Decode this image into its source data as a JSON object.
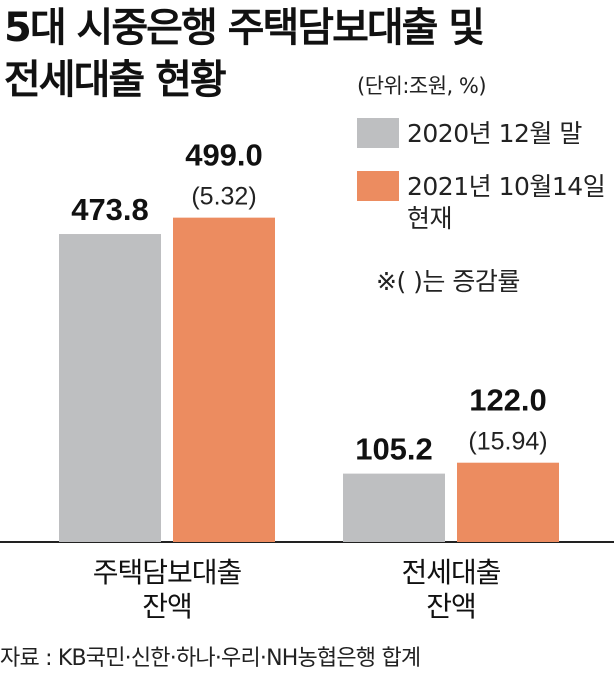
{
  "title_lines": [
    "5대 시중은행 주택담보대출 및",
    "전세대출 현황"
  ],
  "unit": "(단위:조원, %)",
  "legend": [
    {
      "label": "2020년 12월 말",
      "color": "#bebfc1"
    },
    {
      "label": "2021년 10월14일\n현재",
      "color": "#ec8c60"
    }
  ],
  "note": "※(    )는 증감률",
  "source": "자료 : KB국민·신한·하나·우리·NH농협은행 합계",
  "chart_data": {
    "type": "bar",
    "categories": [
      [
        "주택담보대출",
        "잔액"
      ],
      [
        "전세대출",
        "잔액"
      ]
    ],
    "series": [
      {
        "name": "2020년 12월 말",
        "values": [
          473.8,
          105.2
        ],
        "labels": [
          "473.8",
          "105.2"
        ],
        "color": "#bebfc1"
      },
      {
        "name": "2021년 10월14일 현재",
        "values": [
          499.0,
          122.0
        ],
        "labels": [
          "499.0",
          "122.0"
        ],
        "change_labels": [
          "(5.32)",
          "(15.94)"
        ],
        "color": "#ec8c60"
      }
    ],
    "xlabel": "",
    "ylabel": "",
    "ylim": [
      0,
      690
    ],
    "grid": false,
    "legend_position": "top-right"
  }
}
